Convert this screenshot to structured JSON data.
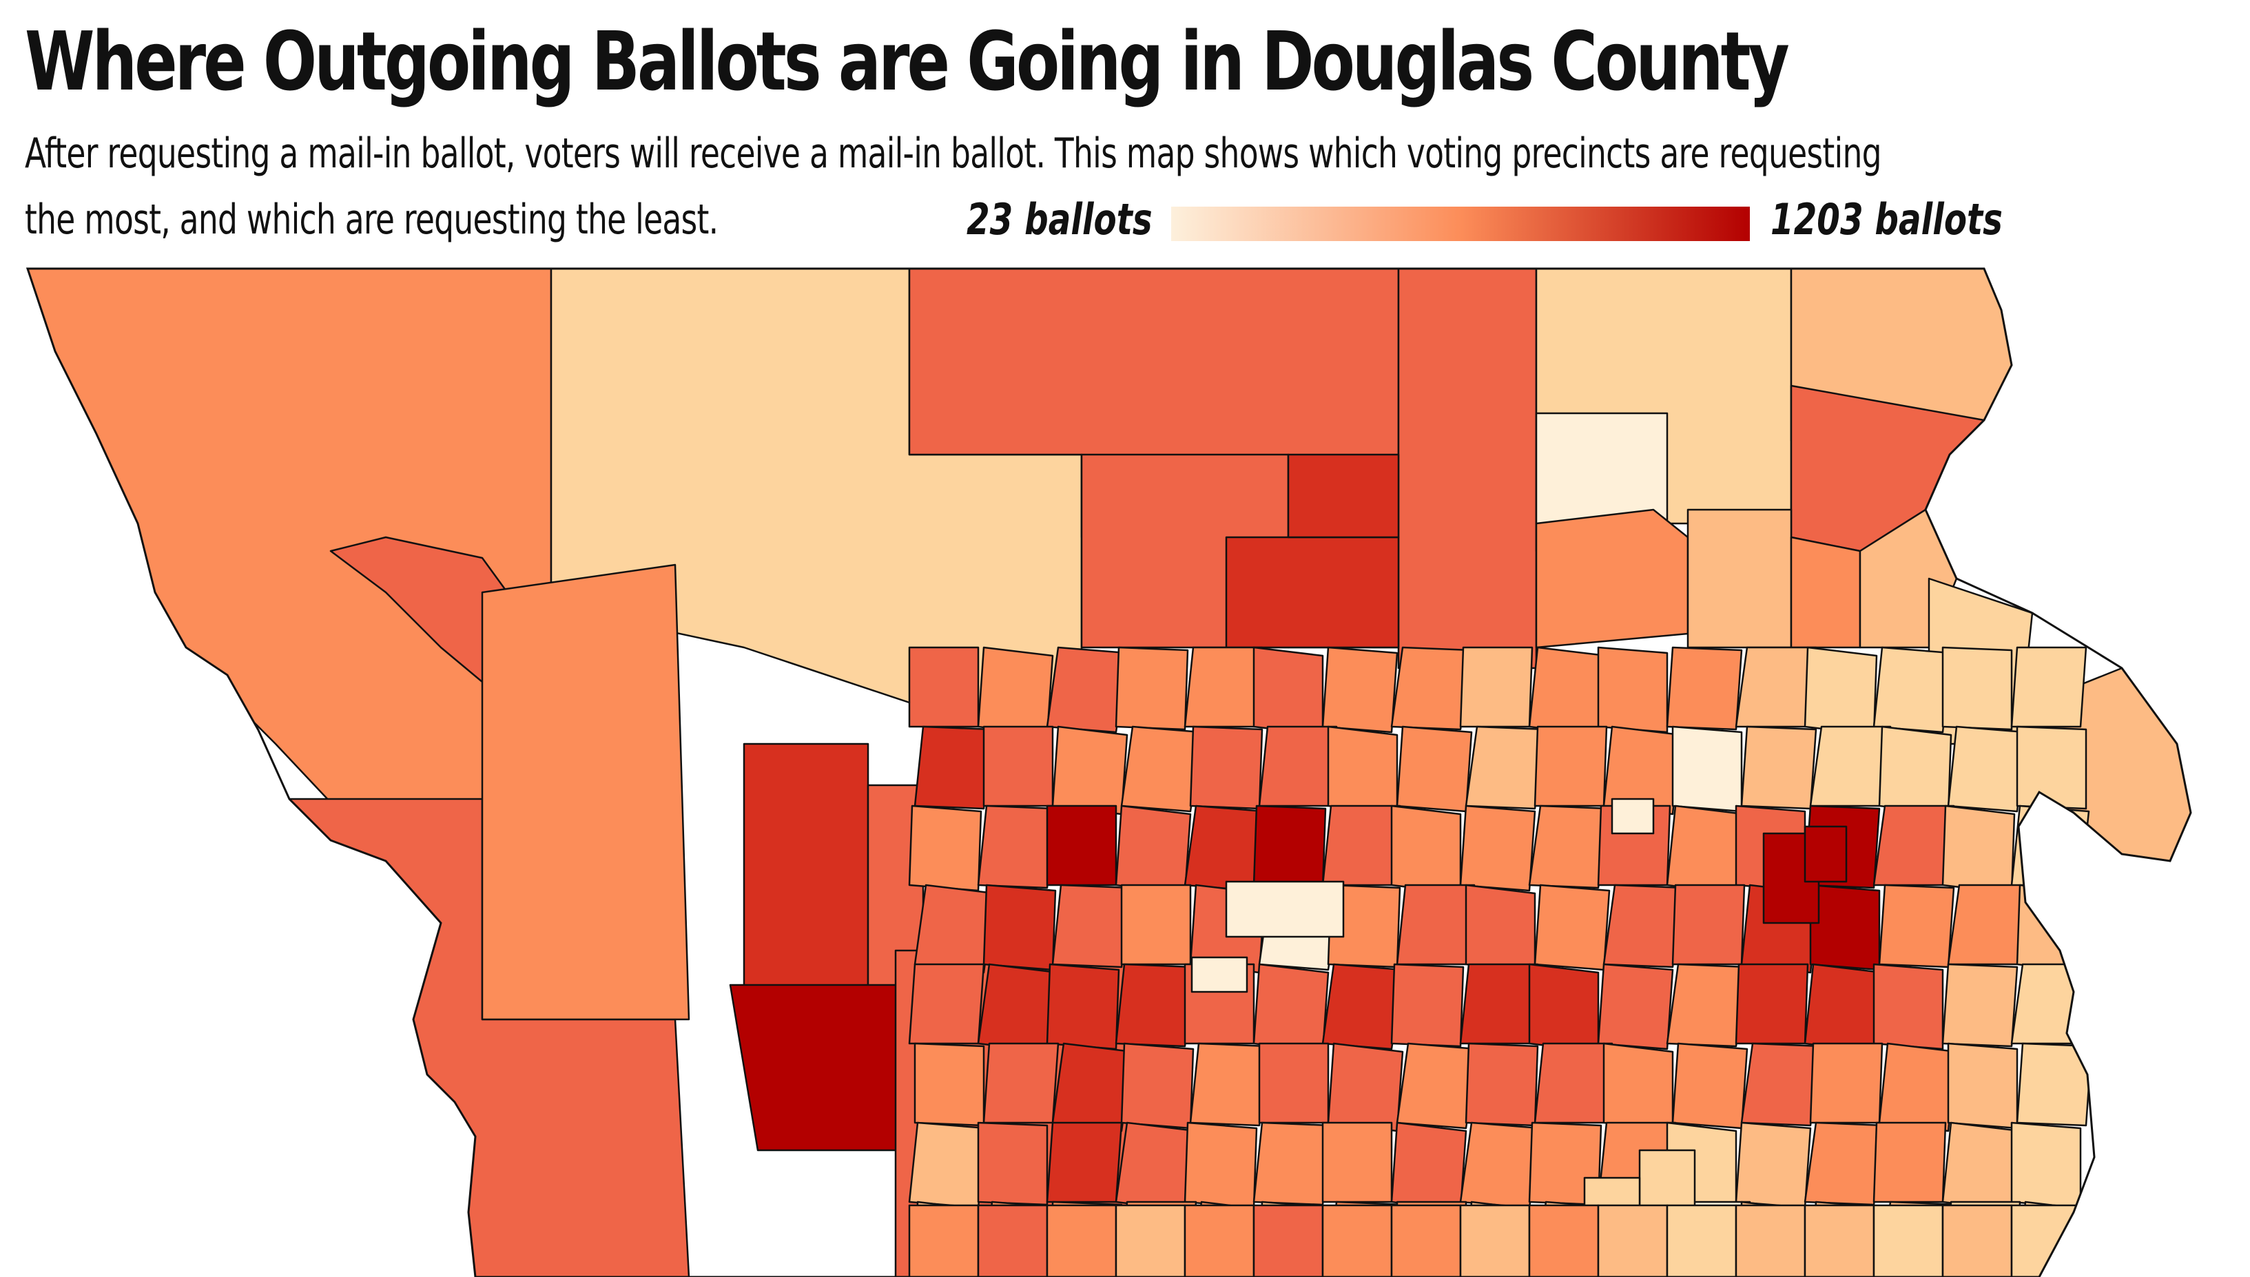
{
  "title": "Where Outgoing Ballots are Going in Douglas County",
  "subtitle_line1": "After requesting a mail-in ballot, voters will receive a mail-in ballot. This map shows which voting precincts are requesting",
  "subtitle_line2": "the most, and which are requesting the least.",
  "legend": {
    "min_label": "23 ballots",
    "max_label": "1203 ballots",
    "min_value": 23,
    "max_value": 1203,
    "color_low": "#fdf0dc",
    "color_high": "#b30000"
  },
  "colors": {
    "outline": "#111111",
    "palette": [
      "#fef0d9",
      "#fdd49e",
      "#fdbb84",
      "#fc8d59",
      "#ef6548",
      "#d7301f",
      "#b30000"
    ]
  }
}
